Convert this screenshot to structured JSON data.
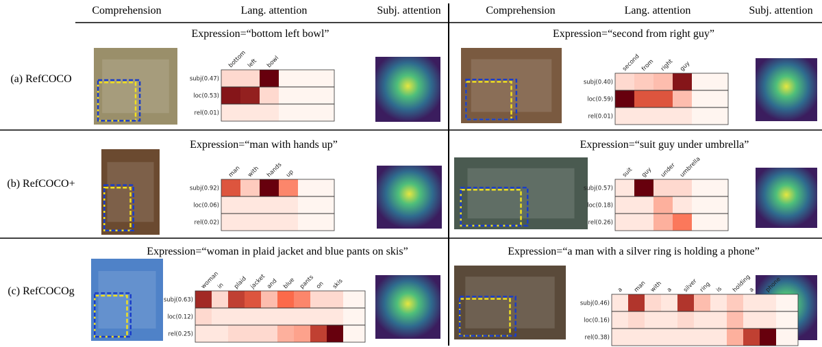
{
  "header": [
    "Comprehension",
    "Lang. attention",
    "Subj. attention",
    "Comprehension",
    "Lang. attention",
    "Subj. attention"
  ],
  "datasets": [
    "(a) RefCOCO",
    "(b) RefCOCO+",
    "(c) RefCOCOg"
  ],
  "panels": [
    {
      "expression": "Expression=“bottom left bowl”",
      "words": [
        "bottom",
        "left",
        "bowl"
      ],
      "rows": [
        "subj(0.47)",
        "loc(0.53)",
        "rel(0.01)"
      ],
      "weights": [
        [
          0.1,
          0.1,
          1.0
        ],
        [
          0.9,
          0.85,
          0.1
        ],
        [
          0.05,
          0.05,
          0.05
        ]
      ]
    },
    {
      "expression": "Expression=“second from right guy”",
      "words": [
        "second",
        "from",
        "right",
        "guy"
      ],
      "rows": [
        "subj(0.40)",
        "loc(0.59)",
        "rel(0.01)"
      ],
      "weights": [
        [
          0.1,
          0.15,
          0.2,
          0.9
        ],
        [
          1.0,
          0.6,
          0.6,
          0.2
        ],
        [
          0.05,
          0.05,
          0.05,
          0.05
        ]
      ]
    },
    {
      "expression": "Expression=“man with hands up”",
      "words": [
        "man",
        "with",
        "hands",
        "up"
      ],
      "rows": [
        "subj(0.92)",
        "loc(0.06)",
        "rel(0.02)"
      ],
      "weights": [
        [
          0.6,
          0.15,
          1.0,
          0.4
        ],
        [
          0.05,
          0.05,
          0.05,
          0.05
        ],
        [
          0.05,
          0.05,
          0.05,
          0.05
        ]
      ]
    },
    {
      "expression": "Expression=“suit guy under umbrella”",
      "words": [
        "suit",
        "guy",
        "under",
        "umbrella"
      ],
      "rows": [
        "subj(0.57)",
        "loc(0.18)",
        "rel(0.26)"
      ],
      "weights": [
        [
          0.05,
          1.0,
          0.1,
          0.1
        ],
        [
          0.05,
          0.05,
          0.25,
          0.05
        ],
        [
          0.05,
          0.05,
          0.25,
          0.45
        ]
      ]
    },
    {
      "expression": "Expression=“woman in plaid jacket and blue pants on skis”",
      "words": [
        "woman",
        "in",
        "plaid",
        "jacket",
        "and",
        "blue",
        "pants",
        "on",
        "skis"
      ],
      "rows": [
        "subj(0.63)",
        "loc(0.12)",
        "rel(0.25)"
      ],
      "weights": [
        [
          0.8,
          0.1,
          0.7,
          0.6,
          0.2,
          0.5,
          0.4,
          0.1,
          0.1
        ],
        [
          0.1,
          0.05,
          0.05,
          0.05,
          0.05,
          0.05,
          0.05,
          0.05,
          0.05
        ],
        [
          0.05,
          0.05,
          0.1,
          0.1,
          0.1,
          0.25,
          0.3,
          0.7,
          1.0
        ]
      ]
    },
    {
      "expression": "Expression=“a man with a silver ring is holding a phone”",
      "words": [
        "a",
        "man",
        "with",
        "a",
        "silver",
        "ring",
        "is",
        "holding",
        "a",
        "phone"
      ],
      "rows": [
        "subj(0.46)",
        "loc(0.16)",
        "rel(0.38)"
      ],
      "weights": [
        [
          0.05,
          0.75,
          0.1,
          0.05,
          0.75,
          0.2,
          0.05,
          0.15,
          0.05,
          0.05
        ],
        [
          0.05,
          0.1,
          0.05,
          0.05,
          0.1,
          0.05,
          0.05,
          0.2,
          0.05,
          0.05
        ],
        [
          0.05,
          0.05,
          0.05,
          0.05,
          0.05,
          0.05,
          0.05,
          0.25,
          0.7,
          1.0
        ]
      ]
    }
  ]
}
